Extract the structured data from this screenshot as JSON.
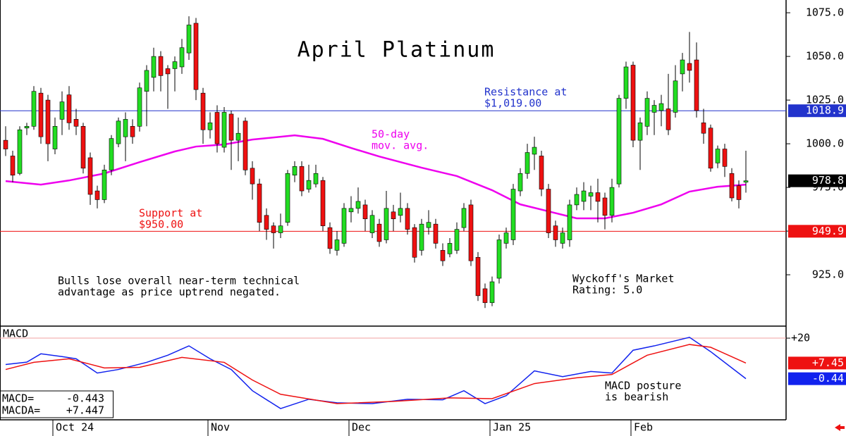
{
  "chart_data": {
    "type": "candlestick",
    "title": "April Platinum",
    "categories": [
      null,
      null,
      null,
      null,
      null,
      null,
      null,
      "Oct 24",
      null,
      null,
      null,
      null,
      null,
      null,
      null,
      null,
      null,
      null,
      null,
      null,
      null,
      null,
      null,
      null,
      null,
      null,
      null,
      null,
      null,
      "Nov",
      null,
      null,
      null,
      null,
      null,
      null,
      null,
      null,
      null,
      null,
      null,
      null,
      null,
      null,
      null,
      null,
      null,
      null,
      null,
      "Dec",
      null,
      null,
      null,
      null,
      null,
      null,
      null,
      null,
      null,
      null,
      null,
      null,
      null,
      null,
      null,
      null,
      null,
      null,
      null,
      "Jan 25",
      null,
      null,
      null,
      null,
      null,
      null,
      null,
      null,
      null,
      null,
      null,
      null,
      null,
      null,
      null,
      null,
      null,
      null,
      null,
      "Feb",
      null,
      null,
      null,
      null,
      null,
      null,
      null,
      null,
      null,
      null,
      null,
      null,
      null,
      null,
      null,
      null
    ],
    "open": [
      1002,
      993,
      983,
      1009,
      1010,
      1029,
      1025,
      997,
      1014,
      1028,
      1014,
      1010,
      992,
      973,
      968,
      985,
      1000,
      1004,
      1010,
      1010,
      1030,
      1038,
      1050,
      1043,
      1043,
      1044,
      1052,
      1069,
      1029,
      1008,
      1018,
      998,
      1017,
      1002,
      1013,
      986,
      977,
      959,
      953,
      949,
      955,
      982,
      987,
      974,
      977,
      979,
      952,
      939,
      943,
      961,
      963,
      965,
      949,
      954,
      945,
      961,
      959,
      963,
      952,
      939,
      952,
      954,
      939,
      937,
      939,
      952,
      965,
      935,
      917,
      909,
      923,
      943,
      945,
      973,
      983,
      994,
      993,
      974,
      953,
      943,
      945,
      965,
      967,
      970,
      972,
      969,
      959,
      977,
      1026,
      1045,
      1002,
      1010,
      1018,
      1019,
      1020,
      1018,
      1040,
      1046,
      1048,
      1012,
      1009,
      989,
      997,
      983,
      976,
      978
    ],
    "high": [
      1010,
      996,
      1010,
      1012,
      1033,
      1032,
      1028,
      1015,
      1030,
      1033,
      1020,
      1012,
      995,
      976,
      988,
      1005,
      1015,
      1018,
      1014,
      1035,
      1045,
      1055,
      1053,
      1045,
      1050,
      1060,
      1073,
      1072,
      1032,
      1018,
      1022,
      1021,
      1019,
      1015,
      1015,
      990,
      980,
      963,
      955,
      960,
      985,
      990,
      990,
      988,
      988,
      981,
      955,
      950,
      966,
      970,
      975,
      968,
      962,
      957,
      973,
      965,
      972,
      966,
      954,
      957,
      962,
      957,
      943,
      946,
      955,
      966,
      968,
      938,
      920,
      924,
      948,
      952,
      977,
      986,
      1000,
      1004,
      996,
      977,
      956,
      952,
      968,
      975,
      978,
      976,
      980,
      972,
      980,
      1028,
      1047,
      1047,
      1015,
      1030,
      1025,
      1028,
      1040,
      1045,
      1052,
      1064,
      1058,
      1020,
      1011,
      999,
      1000,
      986,
      979,
      996
    ],
    "low": [
      993,
      978,
      982,
      1005,
      1008,
      1000,
      990,
      994,
      1005,
      1008,
      1005,
      983,
      965,
      963,
      966,
      982,
      998,
      990,
      1000,
      1007,
      1010,
      1030,
      1030,
      1020,
      1030,
      1040,
      1048,
      1025,
      1000,
      1003,
      995,
      995,
      985,
      990,
      982,
      968,
      950,
      945,
      940,
      946,
      953,
      978,
      970,
      972,
      975,
      950,
      937,
      936,
      941,
      955,
      960,
      950,
      946,
      941,
      943,
      950,
      955,
      948,
      932,
      936,
      948,
      940,
      930,
      935,
      937,
      950,
      930,
      910,
      906,
      907,
      920,
      940,
      942,
      970,
      980,
      985,
      970,
      946,
      941,
      940,
      941,
      962,
      962,
      962,
      955,
      951,
      955,
      975,
      1020,
      998,
      985,
      1005,
      1005,
      1010,
      1005,
      1015,
      1030,
      1035,
      1015,
      1000,
      984,
      986,
      981,
      967,
      963,
      972
    ],
    "close": [
      997,
      982,
      1008,
      1010,
      1030,
      1004,
      1000,
      1010,
      1024,
      1012,
      1010,
      986,
      971,
      968,
      985,
      1003,
      1013,
      1014,
      1004,
      1032,
      1042,
      1050,
      1039,
      1040,
      1047,
      1055,
      1068,
      1031,
      1008,
      1012,
      1000,
      1018,
      1002,
      1006,
      985,
      977,
      955,
      951,
      949,
      953,
      983,
      987,
      973,
      979,
      983,
      953,
      940,
      945,
      963,
      963,
      967,
      957,
      959,
      944,
      963,
      957,
      963,
      951,
      935,
      954,
      955,
      943,
      933,
      943,
      951,
      963,
      933,
      913,
      909,
      921,
      945,
      949,
      974,
      983,
      995,
      998,
      974,
      949,
      945,
      949,
      965,
      971,
      973,
      972,
      967,
      959,
      975,
      1026,
      1044,
      1002,
      1012,
      1026,
      1022,
      1023,
      1008,
      1036,
      1048,
      1042,
      1019,
      1006,
      986,
      997,
      987,
      969,
      968,
      978.8
    ],
    "up_color": "#22dd22",
    "down_color": "#ee1111",
    "ylim": [
      896,
      1082.3
    ],
    "yticks": [
      {
        "value": 925,
        "label": "925.0"
      },
      {
        "value": 950,
        "label": "950.0"
      },
      {
        "value": 975,
        "label": "975.0"
      },
      {
        "value": 1000,
        "label": "1000.0"
      },
      {
        "value": 1025,
        "label": "1025.0"
      },
      {
        "value": 1050,
        "label": "1050.0"
      },
      {
        "value": 1075,
        "label": "1075.0"
      }
    ],
    "moving_average": {
      "name": [
        "50-day",
        "mov. avg."
      ],
      "color": "#ee00ee",
      "x": [
        0,
        5,
        9,
        14,
        19,
        24,
        27,
        31,
        35,
        41,
        45,
        49,
        53,
        59,
        64,
        69,
        73,
        77,
        81,
        85,
        89,
        93,
        97,
        101,
        105
      ],
      "values": [
        978.6,
        976.6,
        979,
        983,
        989.5,
        995.6,
        998.4,
        999.6,
        1002.4,
        1004.8,
        1002.8,
        997.6,
        992.7,
        986.3,
        981.5,
        973.4,
        965.3,
        961.3,
        957.3,
        957.3,
        960.5,
        965.3,
        972.6,
        975.4,
        976.6
      ]
    },
    "levels": [
      {
        "name": [
          "Resistance at",
          "$1,019.00"
        ],
        "value": 1018.9,
        "color": "#2233cc"
      },
      {
        "name": [
          "Support at",
          "$950.00"
        ],
        "value": 949.9,
        "color": "#ee1111"
      }
    ],
    "annotations": [
      [
        "Bulls lose overall near-term technical",
        "advantage as price uptrend negated."
      ],
      [
        "Wyckoff's Market",
        "Rating: 5.0"
      ]
    ],
    "macd_panel": {
      "type": "line",
      "title": "MACD",
      "ylim": [
        -20.8,
        25.7
      ],
      "yticks": [
        {
          "value": 20,
          "label": "+20"
        }
      ],
      "annotation": [
        "MACD posture",
        "is bearish"
      ],
      "series": [
        {
          "name": "MACD=",
          "color": "#1122ee",
          "reading": -0.443,
          "x": [
            0,
            3,
            5,
            8,
            10,
            13,
            16,
            20,
            23,
            26,
            29,
            32,
            35,
            39,
            43,
            47,
            52,
            57,
            62,
            65,
            68,
            71,
            75,
            79,
            83,
            86,
            89,
            92,
            97,
            100,
            105
          ],
          "values": [
            6.7,
            7.9,
            12.1,
            10.7,
            9.6,
            2.4,
            4.2,
            7.8,
            11.4,
            16.1,
            9.6,
            4.2,
            -6.5,
            -15.5,
            -10.8,
            -12.6,
            -13,
            -10.8,
            -11.1,
            -6.5,
            -13,
            -9,
            3.5,
            0.6,
            3.2,
            2.4,
            13.9,
            16.1,
            20.4,
            13.2,
            -0.44
          ]
        },
        {
          "name": "MACDA=",
          "color": "#ee1111",
          "reading": 7.447,
          "reading_label": "+7.447",
          "end_label": "+7.45",
          "x": [
            0,
            4,
            9,
            14,
            19,
            25,
            31,
            35,
            39,
            47,
            55,
            63,
            69,
            75,
            81,
            86,
            91,
            97,
            100,
            105
          ],
          "values": [
            4.2,
            7.8,
            9.6,
            5,
            5.3,
            10.3,
            7.8,
            -1.1,
            -8.3,
            -13,
            -11.9,
            -10.1,
            -10.5,
            -2.9,
            0,
            1.7,
            11.4,
            16.8,
            15.4,
            7.45
          ]
        }
      ]
    }
  }
}
